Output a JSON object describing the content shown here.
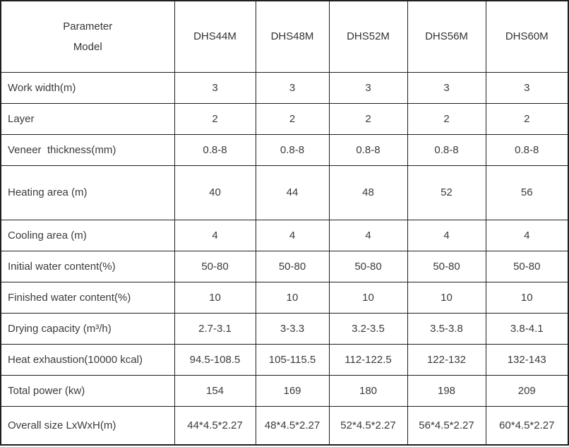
{
  "table": {
    "corner": {
      "line1": "Parameter",
      "line2": "Model"
    },
    "models": [
      "DHS44M",
      "DHS48M",
      "DHS52M",
      "DHS56M",
      "DHS60M"
    ],
    "rows": [
      {
        "label": "Work width(m)",
        "values": [
          "3",
          "3",
          "3",
          "3",
          "3"
        ]
      },
      {
        "label": "Layer",
        "values": [
          "2",
          "2",
          "2",
          "2",
          "2"
        ]
      },
      {
        "label": "Veneer  thickness(mm)",
        "values": [
          "0.8-8",
          "0.8-8",
          "0.8-8",
          "0.8-8",
          "0.8-8"
        ]
      },
      {
        "label": "Heating area (m)",
        "values": [
          "40",
          "44",
          "48",
          "52",
          "56"
        ],
        "tall": true
      },
      {
        "label": "Cooling area (m)",
        "values": [
          "4",
          "4",
          "4",
          "4",
          "4"
        ]
      },
      {
        "label": "Initial water content(%)",
        "values": [
          "50-80",
          "50-80",
          "50-80",
          "50-80",
          "50-80"
        ]
      },
      {
        "label": "Finished water content(%)",
        "values": [
          "10",
          "10",
          "10",
          "10",
          "10"
        ]
      },
      {
        "label": "Drying capacity (m³/h)",
        "values": [
          "2.7-3.1",
          "3-3.3",
          "3.2-3.5",
          "3.5-3.8",
          "3.8-4.1"
        ]
      },
      {
        "label": "Heat exhaustion(10000 kcal)",
        "values": [
          "94.5-108.5",
          "105-115.5",
          "112-122.5",
          "122-132",
          "132-143"
        ]
      },
      {
        "label": "Total power (kw)",
        "values": [
          "154",
          "169",
          "180",
          "198",
          "209"
        ]
      },
      {
        "label": "Overall size LxWxH(m)",
        "values": [
          "44*4.5*2.27",
          "48*4.5*2.27",
          "52*4.5*2.27",
          "56*4.5*2.27",
          "60*4.5*2.27"
        ],
        "last": true
      }
    ]
  },
  "colors": {
    "header_bg": "#8CA2D8",
    "border": "#1F1F1F",
    "text": "#3B3B3B",
    "cell_bg": "#FFFFFF"
  }
}
